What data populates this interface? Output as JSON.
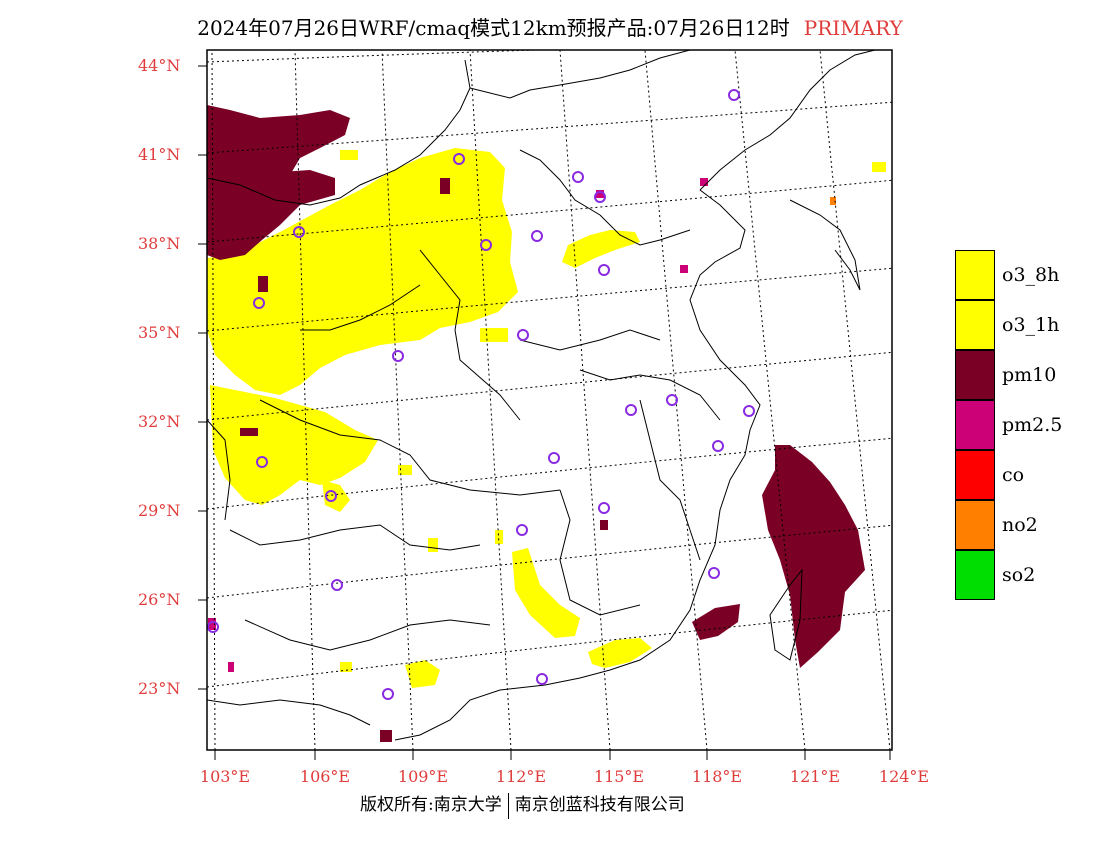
{
  "title": {
    "main": "2024年07月26日WRF/cmaq模式12km预报产品:07月26日12时",
    "tag": "PRIMARY"
  },
  "map": {
    "lat_labels": [
      "44°N",
      "41°N",
      "38°N",
      "35°N",
      "32°N",
      "29°N",
      "26°N",
      "23°N"
    ],
    "lon_labels": [
      "103°E",
      "106°E",
      "109°E",
      "112°E",
      "115°E",
      "118°E",
      "121°E",
      "124°E"
    ],
    "colors": {
      "o3_8h": "#ffff00",
      "o3_1h": "#ffff00",
      "pm10": "#7a0026",
      "pm2_5": "#cc0077",
      "co": "#ff0000",
      "no2": "#ff7f00",
      "so2": "#00dd00",
      "station_marker": "#8a2be2",
      "label_red": "#e03c3c"
    }
  },
  "legend": {
    "items": [
      {
        "label": "o3_8h",
        "color": "#ffff00"
      },
      {
        "label": "o3_1h",
        "color": "#ffff00"
      },
      {
        "label": "pm10",
        "color": "#7a0026"
      },
      {
        "label": "pm2.5",
        "color": "#cc0077"
      },
      {
        "label": "co",
        "color": "#ff0000"
      },
      {
        "label": "no2",
        "color": "#ff7f00"
      },
      {
        "label": "so2",
        "color": "#00dd00"
      }
    ]
  },
  "footer": {
    "left": "版权所有:南京大学",
    "right": "南京创蓝科技有限公司"
  }
}
